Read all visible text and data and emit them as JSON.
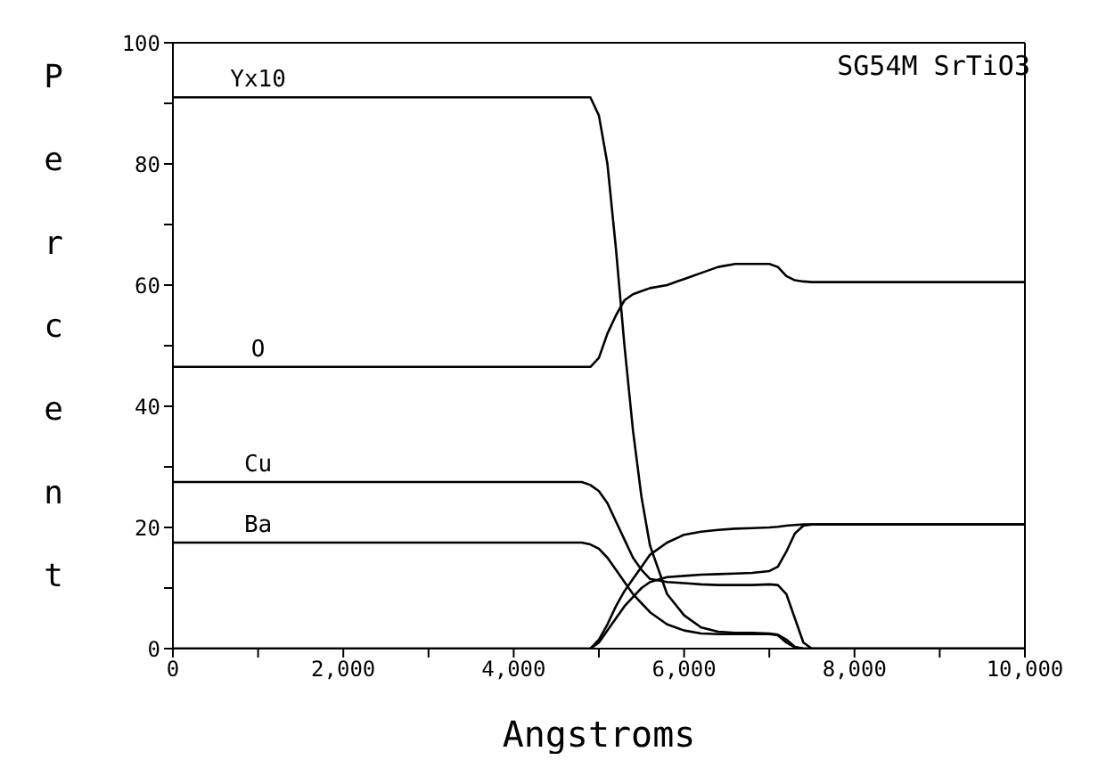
{
  "chart_data": {
    "type": "line",
    "title": "SG54M SrTiO3",
    "xlabel": "Angstroms",
    "ylabel": "Percent",
    "x": [
      0,
      4800,
      4900,
      5000,
      5100,
      5200,
      5300,
      5400,
      5500,
      5600,
      5800,
      6000,
      6200,
      6400,
      6600,
      6800,
      7000,
      7100,
      7200,
      7300,
      7400,
      7500,
      8000,
      10000
    ],
    "series": [
      {
        "name": "Yx10",
        "color": "#000000",
        "values": [
          91,
          91,
          91,
          88,
          80,
          66,
          50,
          36,
          25,
          17,
          9,
          5.5,
          3.5,
          2.8,
          2.6,
          2.6,
          2.5,
          2.3,
          1.5,
          0.3,
          0,
          0,
          0,
          0
        ]
      },
      {
        "name": "O",
        "color": "#000000",
        "values": [
          46.5,
          46.5,
          46.5,
          48,
          52,
          55,
          57.5,
          58.5,
          59,
          59.5,
          60,
          61,
          62,
          63,
          63.5,
          63.5,
          63.5,
          63,
          61.5,
          60.8,
          60.6,
          60.5,
          60.5,
          60.5
        ]
      },
      {
        "name": "Cu",
        "color": "#000000",
        "values": [
          27.5,
          27.5,
          27,
          26,
          24,
          21,
          18,
          15,
          13,
          11.5,
          11,
          10.8,
          10.6,
          10.5,
          10.5,
          10.5,
          10.6,
          10.5,
          9,
          5,
          1,
          0,
          0,
          0
        ]
      },
      {
        "name": "Ba",
        "color": "#000000",
        "values": [
          17.5,
          17.5,
          17.2,
          16.5,
          15,
          13,
          11,
          9,
          7.5,
          6,
          4,
          3,
          2.5,
          2.4,
          2.4,
          2.4,
          2.4,
          2.2,
          1,
          0.2,
          0,
          0,
          0,
          0
        ]
      },
      {
        "color": "#000000",
        "values": [
          0,
          0,
          0,
          1.5,
          4,
          7,
          9.5,
          11.5,
          13.5,
          15.5,
          17.5,
          18.8,
          19.3,
          19.6,
          19.8,
          19.9,
          20,
          20.1,
          20.3,
          20.4,
          20.5,
          20.5,
          20.5,
          20.5
        ]
      },
      {
        "color": "#000000",
        "values": [
          0,
          0,
          0,
          1,
          3,
          5,
          7,
          8.5,
          10,
          11,
          11.8,
          12,
          12.2,
          12.3,
          12.4,
          12.5,
          12.8,
          13.5,
          16,
          19,
          20.3,
          20.5,
          20.5,
          20.5
        ]
      }
    ],
    "xlim": [
      0,
      10000
    ],
    "xticks": [
      {
        "value": 0,
        "label": "0"
      },
      {
        "value": 1000,
        "label": null
      },
      {
        "value": 2000,
        "label": "2,000"
      },
      {
        "value": 3000,
        "label": null
      },
      {
        "value": 4000,
        "label": "4,000"
      },
      {
        "value": 5000,
        "label": null
      },
      {
        "value": 6000,
        "label": "6,000"
      },
      {
        "value": 7000,
        "label": null
      },
      {
        "value": 8000,
        "label": "8,000"
      },
      {
        "value": 9000,
        "label": null
      },
      {
        "value": 10000,
        "label": "10,000"
      }
    ],
    "ylim": [
      0,
      100
    ],
    "yticks": [
      0,
      {
        "value": 10,
        "label": null
      },
      20,
      {
        "value": 30,
        "label": null
      },
      40,
      {
        "value": 50,
        "label": null
      },
      60,
      {
        "value": 70,
        "label": null
      },
      80,
      {
        "value": 90,
        "label": null
      },
      100
    ],
    "grid": false,
    "legend": false,
    "marker": "none",
    "line_style": "solid"
  }
}
